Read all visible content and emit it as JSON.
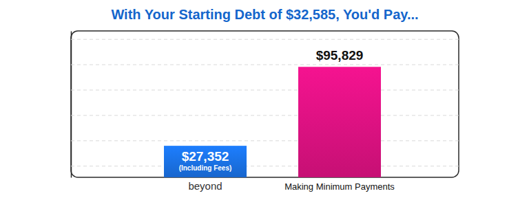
{
  "chart_data": {
    "type": "bar",
    "title": "With Your Starting Debt of $32,585, You'd Pay...",
    "categories": [
      "beyond",
      "Making Minimum Payments"
    ],
    "values": [
      27352,
      95829
    ],
    "value_labels": [
      "$27,352",
      "$95,829"
    ],
    "annotation": "(Including Fees)",
    "colors": [
      "#1a6fe0",
      "#d8117f"
    ],
    "ylim": [
      0,
      127000
    ],
    "yticks": [
      10000,
      32000,
      54000,
      76000,
      98000,
      120000
    ],
    "grid": true,
    "tick_labels": false,
    "data_labels": true
  }
}
